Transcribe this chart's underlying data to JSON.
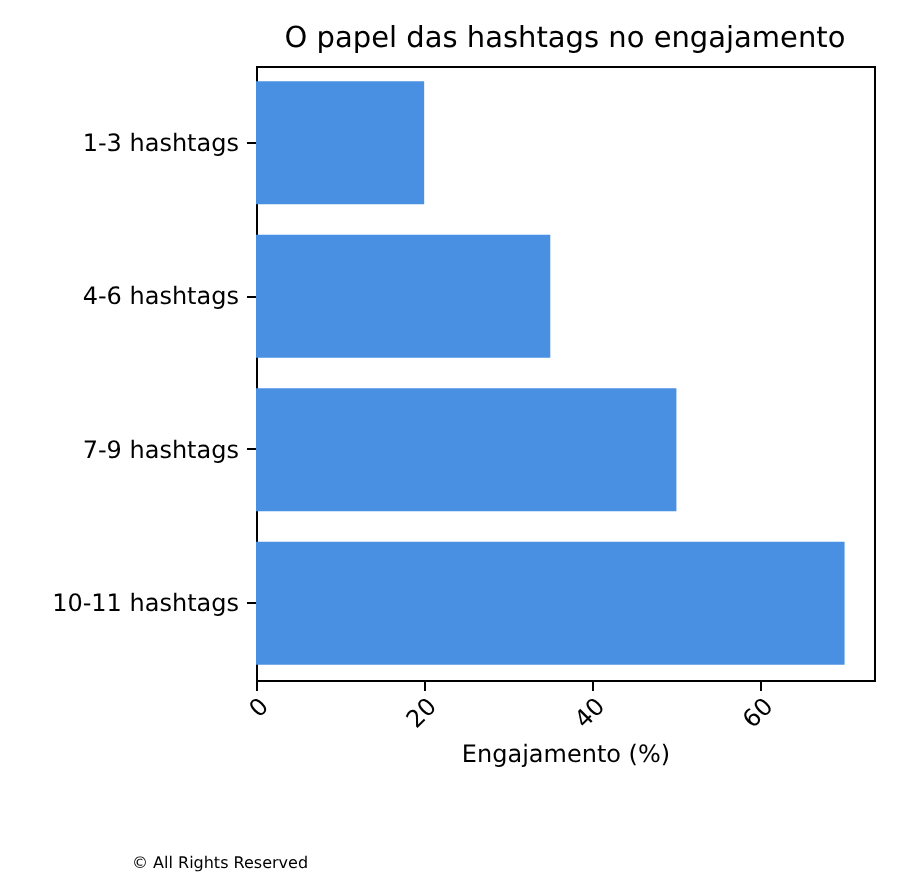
{
  "chart_data": {
    "type": "bar",
    "orientation": "horizontal",
    "title": "O papel das hashtags no engajamento",
    "xlabel": "Engajamento (%)",
    "categories": [
      "1-3 hashtags",
      "4-6 hashtags",
      "7-9 hashtags",
      "10-11 hashtags"
    ],
    "values": [
      20,
      35,
      50,
      70
    ],
    "color": "#4a90e2",
    "xlim": [
      0,
      73.5
    ],
    "xticks": [
      0,
      20,
      40,
      60
    ],
    "grid": false,
    "annotations": [
      "© All Rights Reserved"
    ]
  }
}
